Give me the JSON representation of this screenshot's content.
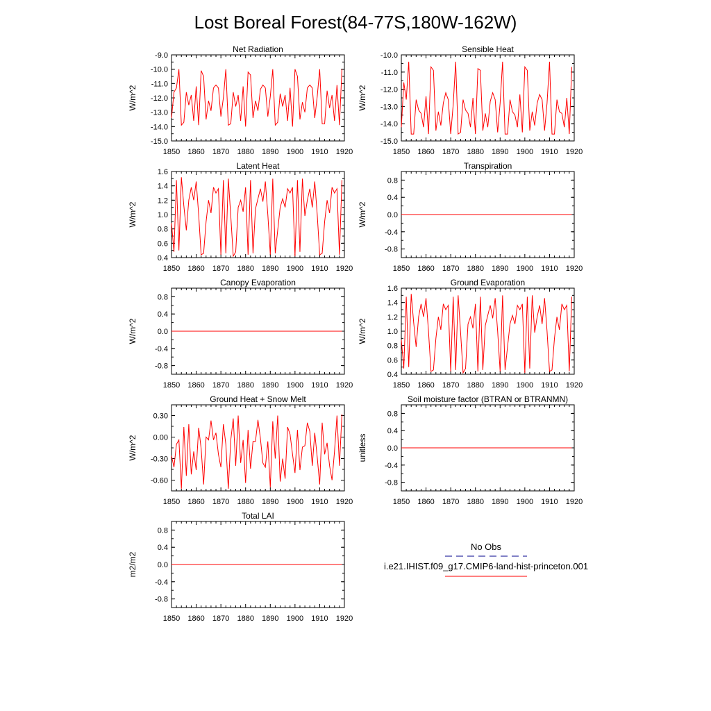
{
  "figure": {
    "title": "Lost Boreal Forest(84-77S,180W-162W)"
  },
  "legend": {
    "entries": [
      {
        "label": "No Obs",
        "color": "#00008b",
        "dash": true
      },
      {
        "label": "i.e21.IHIST.f09_g17.CMIP6-land-hist-princeton.001",
        "color": "#ff0000",
        "dash": false
      }
    ]
  },
  "colors": {
    "series": "#ff0000",
    "obs": "#00008b"
  },
  "chart_data": [
    {
      "type": "line",
      "title": "Net Radiation",
      "ylabel": "W/m^2",
      "xlim": [
        1850,
        1920
      ],
      "ylim": [
        -15,
        -9
      ],
      "xticks": [
        1850,
        1860,
        1870,
        1880,
        1890,
        1900,
        1910,
        1920
      ],
      "xticklabels": [
        "1850",
        "1860",
        "1870",
        "1880",
        "1890",
        "1900",
        "1910",
        "1920"
      ],
      "yticks": [
        -15,
        -14,
        -13,
        -12,
        -11,
        -10,
        -9
      ],
      "yticklabels": [
        "-15.0",
        "-14.0",
        "-13.0",
        "-12.0",
        "-11.0",
        "-10.0",
        "-9.0"
      ],
      "x_start": 1850,
      "series": [
        {
          "values": [
            -13.4,
            -11.6,
            -11.3,
            -10.0,
            -13.9,
            -13.7,
            -11.6,
            -12.5,
            -11.8,
            -13.6,
            -11.2,
            -13.9,
            -10.1,
            -10.5,
            -13.5,
            -12.2,
            -12.9,
            -11.3,
            -11.1,
            -11.3,
            -13.3,
            -12.0,
            -10.0,
            -13.9,
            -13.8,
            -11.6,
            -12.6,
            -11.8,
            -13.6,
            -11.2,
            -14.0,
            -10.2,
            -10.4,
            -13.4,
            -12.2,
            -12.9,
            -11.4,
            -11.1,
            -11.3,
            -13.3,
            -11.9,
            -10.0,
            -13.9,
            -13.7,
            -11.7,
            -12.6,
            -11.8,
            -13.6,
            -11.3,
            -14.0,
            -10.0,
            -10.5,
            -13.5,
            -12.3,
            -13.0,
            -11.3,
            -11.1,
            -11.3,
            -13.4,
            -11.9,
            -10.0,
            -13.8,
            -13.8,
            -11.5,
            -12.7,
            -11.8,
            -13.6,
            -11.1,
            -13.9,
            -10.0
          ]
        }
      ]
    },
    {
      "type": "line",
      "title": "Sensible Heat",
      "ylabel": "W/m^2",
      "xlim": [
        1850,
        1920
      ],
      "ylim": [
        -15,
        -10
      ],
      "xticks": [
        1850,
        1860,
        1870,
        1880,
        1890,
        1900,
        1910,
        1920
      ],
      "xticklabels": [
        "1850",
        "1860",
        "1870",
        "1880",
        "1890",
        "1900",
        "1910",
        "1920"
      ],
      "yticks": [
        -15,
        -14,
        -13,
        -12,
        -11,
        -10
      ],
      "yticklabels": [
        "-15.0",
        "-14.0",
        "-13.0",
        "-12.0",
        "-11.0",
        "-10.0"
      ],
      "x_start": 1850,
      "series": [
        {
          "values": [
            -14.2,
            -11.6,
            -12.6,
            -10.4,
            -14.6,
            -14.6,
            -12.6,
            -13.2,
            -13.4,
            -14.2,
            -12.4,
            -14.6,
            -10.7,
            -10.9,
            -14.4,
            -13.3,
            -14.1,
            -12.8,
            -12.2,
            -12.6,
            -14.6,
            -12.9,
            -10.4,
            -14.6,
            -14.5,
            -12.6,
            -13.2,
            -13.4,
            -14.2,
            -12.5,
            -14.6,
            -10.8,
            -10.9,
            -14.4,
            -13.4,
            -14.2,
            -12.7,
            -12.2,
            -12.6,
            -14.5,
            -12.8,
            -10.4,
            -14.6,
            -14.6,
            -12.6,
            -13.3,
            -13.5,
            -14.2,
            -12.3,
            -14.5,
            -10.7,
            -10.9,
            -14.4,
            -13.3,
            -14.1,
            -12.8,
            -12.3,
            -12.6,
            -14.4,
            -12.8,
            -10.4,
            -14.6,
            -14.6,
            -12.6,
            -13.3,
            -13.4,
            -14.2,
            -12.5,
            -14.6,
            -10.7
          ]
        }
      ]
    },
    {
      "type": "line",
      "title": "Latent Heat",
      "ylabel": "W/m^2",
      "xlim": [
        1850,
        1920
      ],
      "ylim": [
        0.4,
        1.6
      ],
      "xticks": [
        1850,
        1860,
        1870,
        1880,
        1890,
        1900,
        1910,
        1920
      ],
      "xticklabels": [
        "1850",
        "1860",
        "1870",
        "1880",
        "1890",
        "1900",
        "1910",
        "1920"
      ],
      "yticks": [
        0.4,
        0.6,
        0.8,
        1.0,
        1.2,
        1.4,
        1.6
      ],
      "yticklabels": [
        "0.4",
        "0.6",
        "0.8",
        "1.0",
        "1.2",
        "1.4",
        "1.6"
      ],
      "x_start": 1850,
      "series": [
        {
          "values": [
            0.88,
            0.48,
            1.48,
            0.5,
            1.52,
            1.12,
            0.78,
            1.2,
            1.38,
            1.2,
            1.46,
            1.0,
            0.44,
            0.46,
            0.9,
            1.2,
            1.02,
            1.38,
            1.3,
            1.36,
            0.44,
            1.48,
            0.46,
            1.5,
            0.98,
            0.42,
            0.48,
            1.1,
            1.2,
            1.04,
            1.38,
            0.44,
            1.48,
            0.46,
            1.08,
            1.22,
            1.36,
            1.18,
            1.46,
            1.0,
            0.44,
            1.5,
            0.46,
            0.78,
            1.1,
            1.22,
            1.1,
            1.36,
            1.3,
            1.38,
            0.42,
            1.48,
            0.48,
            1.5,
            0.98,
            1.2,
            1.36,
            1.1,
            1.46,
            1.0,
            0.44,
            0.46,
            0.9,
            1.2,
            1.02,
            1.38,
            1.3,
            1.36,
            0.44,
            1.48
          ]
        }
      ]
    },
    {
      "type": "line",
      "title": "Transpiration",
      "ylabel": "W/m^2",
      "xlim": [
        1850,
        1920
      ],
      "ylim": [
        -1.0,
        1.0
      ],
      "xticks": [
        1850,
        1860,
        1870,
        1880,
        1890,
        1900,
        1910,
        1920
      ],
      "xticklabels": [
        "1850",
        "1860",
        "1870",
        "1880",
        "1890",
        "1900",
        "1910",
        "1920"
      ],
      "yticks": [
        -0.8,
        -0.4,
        0.0,
        0.4,
        0.8
      ],
      "yticklabels": [
        "-0.8",
        "-0.4",
        "0.0",
        "0.4",
        "0.8"
      ],
      "x_start": 1850,
      "series": [
        {
          "constant": 0,
          "x_end": 1919
        }
      ]
    },
    {
      "type": "line",
      "title": "Canopy Evaporation",
      "ylabel": "W/m^2",
      "xlim": [
        1850,
        1920
      ],
      "ylim": [
        -1.0,
        1.0
      ],
      "xticks": [
        1850,
        1860,
        1870,
        1880,
        1890,
        1900,
        1910,
        1920
      ],
      "xticklabels": [
        "1850",
        "1860",
        "1870",
        "1880",
        "1890",
        "1900",
        "1910",
        "1920"
      ],
      "yticks": [
        -0.8,
        -0.4,
        0.0,
        0.4,
        0.8
      ],
      "yticklabels": [
        "-0.8",
        "-0.4",
        "0.0",
        "0.4",
        "0.8"
      ],
      "x_start": 1850,
      "series": [
        {
          "constant": 0,
          "x_end": 1919
        }
      ]
    },
    {
      "type": "line",
      "title": "Ground Evaporation",
      "ylabel": "W/m^2",
      "xlim": [
        1850,
        1920
      ],
      "ylim": [
        0.4,
        1.6
      ],
      "xticks": [
        1850,
        1860,
        1870,
        1880,
        1890,
        1900,
        1910,
        1920
      ],
      "xticklabels": [
        "1850",
        "1860",
        "1870",
        "1880",
        "1890",
        "1900",
        "1910",
        "1920"
      ],
      "yticks": [
        0.4,
        0.6,
        0.8,
        1.0,
        1.2,
        1.4,
        1.6
      ],
      "yticklabels": [
        "0.4",
        "0.6",
        "0.8",
        "1.0",
        "1.2",
        "1.4",
        "1.6"
      ],
      "x_start": 1850,
      "series": [
        {
          "values": [
            0.88,
            0.48,
            1.48,
            0.5,
            1.52,
            1.12,
            0.78,
            1.2,
            1.38,
            1.2,
            1.46,
            1.0,
            0.44,
            0.46,
            0.9,
            1.2,
            1.02,
            1.38,
            1.3,
            1.36,
            0.44,
            1.48,
            0.46,
            1.5,
            0.98,
            0.42,
            0.48,
            1.1,
            1.2,
            1.04,
            1.38,
            0.44,
            1.48,
            0.46,
            1.08,
            1.22,
            1.36,
            1.18,
            1.46,
            1.0,
            0.44,
            1.5,
            0.46,
            0.78,
            1.1,
            1.22,
            1.1,
            1.36,
            1.3,
            1.38,
            0.42,
            1.48,
            0.48,
            1.5,
            0.98,
            1.2,
            1.36,
            1.1,
            1.46,
            1.0,
            0.44,
            0.46,
            0.9,
            1.2,
            1.02,
            1.38,
            1.3,
            1.36,
            0.44,
            1.48
          ]
        }
      ]
    },
    {
      "type": "line",
      "title": "Ground Heat + Snow Melt",
      "ylabel": "W/m^2",
      "xlim": [
        1850,
        1920
      ],
      "ylim": [
        -0.75,
        0.45
      ],
      "xticks": [
        1850,
        1860,
        1870,
        1880,
        1890,
        1900,
        1910,
        1920
      ],
      "xticklabels": [
        "1850",
        "1860",
        "1870",
        "1880",
        "1890",
        "1900",
        "1910",
        "1920"
      ],
      "yticks": [
        -0.6,
        -0.3,
        0.0,
        0.3
      ],
      "yticklabels": [
        "-0.60",
        "-0.30",
        "0.00",
        "0.30"
      ],
      "x_start": 1850,
      "series": [
        {
          "values": [
            -0.26,
            -0.42,
            -0.1,
            -0.04,
            -0.72,
            0.14,
            -0.54,
            0.18,
            -0.52,
            -0.2,
            -0.46,
            0.13,
            -0.16,
            -0.66,
            0.0,
            -0.04,
            0.23,
            -0.04,
            0.06,
            -0.24,
            -0.42,
            0.18,
            -0.1,
            -0.72,
            -0.04,
            0.26,
            -0.4,
            0.3,
            -0.36,
            -0.04,
            -0.64,
            0.1,
            -0.44,
            -0.06,
            -0.06,
            0.24,
            -0.02,
            -0.36,
            -0.42,
            -0.06,
            -0.7,
            0.22,
            -0.3,
            0.3,
            -0.62,
            -0.3,
            -0.58,
            0.14,
            0.04,
            -0.24,
            -0.5,
            0.1,
            -0.46,
            -0.14,
            -0.12,
            0.2,
            0.08,
            -0.4,
            0.06,
            -0.28,
            -0.66,
            0.2,
            -0.24,
            -0.08,
            -0.4,
            -0.6,
            -0.2,
            0.3,
            -0.4,
            0.32
          ]
        }
      ]
    },
    {
      "type": "line",
      "title": "Soil moisture factor (BTRAN or BTRANMN)",
      "ylabel": "unitless",
      "xlim": [
        1850,
        1920
      ],
      "ylim": [
        -1.0,
        1.0
      ],
      "xticks": [
        1850,
        1860,
        1870,
        1880,
        1890,
        1900,
        1910,
        1920
      ],
      "xticklabels": [
        "1850",
        "1860",
        "1870",
        "1880",
        "1890",
        "1900",
        "1910",
        "1920"
      ],
      "yticks": [
        -0.8,
        -0.4,
        0.0,
        0.4,
        0.8
      ],
      "yticklabels": [
        "-0.8",
        "-0.4",
        "0.0",
        "0.4",
        "0.8"
      ],
      "x_start": 1850,
      "series": [
        {
          "constant": 0,
          "x_end": 1919
        }
      ]
    },
    {
      "type": "line",
      "title": "Total LAI",
      "ylabel": "m2/m2",
      "xlim": [
        1850,
        1920
      ],
      "ylim": [
        -1.0,
        1.0
      ],
      "xticks": [
        1850,
        1860,
        1870,
        1880,
        1890,
        1900,
        1910,
        1920
      ],
      "xticklabels": [
        "1850",
        "1860",
        "1870",
        "1880",
        "1890",
        "1900",
        "1910",
        "1920"
      ],
      "yticks": [
        -0.8,
        -0.4,
        0.0,
        0.4,
        0.8
      ],
      "yticklabels": [
        "-0.8",
        "-0.4",
        "0.0",
        "0.4",
        "0.8"
      ],
      "x_start": 1850,
      "series": [
        {
          "constant": 0,
          "x_end": 1919
        }
      ]
    }
  ]
}
